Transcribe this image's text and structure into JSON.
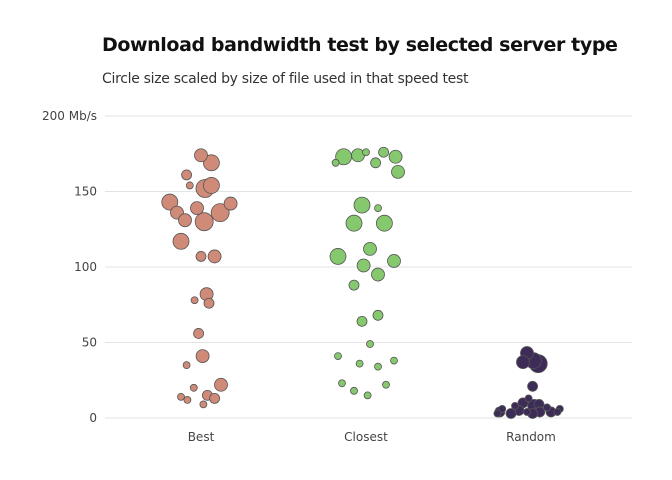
{
  "chart_data": {
    "type": "scatter",
    "title": "Download bandwidth test by selected server type",
    "subtitle": "Circle size scaled by size of file used in that speed test",
    "xlabel": "",
    "ylabel": "",
    "categories": [
      "Best",
      "Closest",
      "Random"
    ],
    "y_ticks": [
      "0",
      "50",
      "100",
      "150",
      "200 Mb/s"
    ],
    "y_tick_values": [
      0,
      50,
      100,
      150,
      200
    ],
    "ylim": [
      0,
      200
    ],
    "grid": "horizontal",
    "legend": "none",
    "colors": {
      "Best": "#d08a78",
      "Closest": "#86c86e",
      "Random": "#3d2c57",
      "outline": "#555555",
      "grid": "#e3e3e3"
    },
    "series": [
      {
        "category": "Best",
        "points": [
          {
            "j": 0.0,
            "y": 174,
            "s": 3
          },
          {
            "j": 0.13,
            "y": 169,
            "s": 4
          },
          {
            "j": -0.18,
            "y": 161,
            "s": 2
          },
          {
            "j": -0.14,
            "y": 154,
            "s": 1
          },
          {
            "j": 0.13,
            "y": 154,
            "s": 4
          },
          {
            "j": 0.05,
            "y": 152,
            "s": 5
          },
          {
            "j": -0.39,
            "y": 143,
            "s": 4
          },
          {
            "j": 0.37,
            "y": 142,
            "s": 3
          },
          {
            "j": -0.05,
            "y": 139,
            "s": 3
          },
          {
            "j": -0.3,
            "y": 136,
            "s": 3
          },
          {
            "j": 0.24,
            "y": 136,
            "s": 5
          },
          {
            "j": -0.2,
            "y": 131,
            "s": 3
          },
          {
            "j": 0.04,
            "y": 130,
            "s": 5
          },
          {
            "j": -0.25,
            "y": 117,
            "s": 4
          },
          {
            "j": 0.0,
            "y": 107,
            "s": 2
          },
          {
            "j": 0.17,
            "y": 107,
            "s": 3
          },
          {
            "j": 0.07,
            "y": 82,
            "s": 3
          },
          {
            "j": -0.08,
            "y": 78,
            "s": 1
          },
          {
            "j": 0.1,
            "y": 76,
            "s": 2
          },
          {
            "j": -0.03,
            "y": 56,
            "s": 2
          },
          {
            "j": 0.02,
            "y": 41,
            "s": 3
          },
          {
            "j": -0.18,
            "y": 35,
            "s": 1
          },
          {
            "j": 0.25,
            "y": 22,
            "s": 3
          },
          {
            "j": -0.09,
            "y": 20,
            "s": 1
          },
          {
            "j": 0.08,
            "y": 15,
            "s": 2
          },
          {
            "j": -0.25,
            "y": 14,
            "s": 1
          },
          {
            "j": 0.17,
            "y": 13,
            "s": 2
          },
          {
            "j": -0.17,
            "y": 12,
            "s": 1
          },
          {
            "j": 0.03,
            "y": 9,
            "s": 1
          }
        ]
      },
      {
        "category": "Closest",
        "points": [
          {
            "j": 0.0,
            "y": 176,
            "s": 1
          },
          {
            "j": 0.22,
            "y": 176,
            "s": 2
          },
          {
            "j": -0.1,
            "y": 174,
            "s": 3
          },
          {
            "j": -0.28,
            "y": 173,
            "s": 4
          },
          {
            "j": 0.37,
            "y": 173,
            "s": 3
          },
          {
            "j": -0.38,
            "y": 169,
            "s": 1
          },
          {
            "j": 0.12,
            "y": 169,
            "s": 2
          },
          {
            "j": 0.4,
            "y": 163,
            "s": 3
          },
          {
            "j": -0.05,
            "y": 141,
            "s": 4
          },
          {
            "j": 0.15,
            "y": 139,
            "s": 1
          },
          {
            "j": -0.15,
            "y": 129,
            "s": 4
          },
          {
            "j": 0.23,
            "y": 129,
            "s": 4
          },
          {
            "j": 0.05,
            "y": 112,
            "s": 3
          },
          {
            "j": -0.35,
            "y": 107,
            "s": 4
          },
          {
            "j": 0.35,
            "y": 104,
            "s": 3
          },
          {
            "j": -0.03,
            "y": 101,
            "s": 3
          },
          {
            "j": 0.15,
            "y": 95,
            "s": 3
          },
          {
            "j": -0.15,
            "y": 88,
            "s": 2
          },
          {
            "j": 0.15,
            "y": 68,
            "s": 2
          },
          {
            "j": -0.05,
            "y": 64,
            "s": 2
          },
          {
            "j": 0.05,
            "y": 49,
            "s": 1
          },
          {
            "j": -0.35,
            "y": 41,
            "s": 1
          },
          {
            "j": 0.35,
            "y": 38,
            "s": 1
          },
          {
            "j": -0.08,
            "y": 36,
            "s": 1
          },
          {
            "j": 0.15,
            "y": 34,
            "s": 1
          },
          {
            "j": -0.3,
            "y": 23,
            "s": 1
          },
          {
            "j": 0.25,
            "y": 22,
            "s": 1
          },
          {
            "j": -0.15,
            "y": 18,
            "s": 1
          },
          {
            "j": 0.02,
            "y": 15,
            "s": 1
          }
        ]
      },
      {
        "category": "Random",
        "points": [
          {
            "j": -0.05,
            "y": 43,
            "s": 3
          },
          {
            "j": -0.1,
            "y": 37,
            "s": 3
          },
          {
            "j": 0.03,
            "y": 38,
            "s": 4
          },
          {
            "j": 0.09,
            "y": 36,
            "s": 5
          },
          {
            "j": 0.02,
            "y": 21,
            "s": 2
          },
          {
            "j": -0.03,
            "y": 13,
            "s": 1
          },
          {
            "j": -0.1,
            "y": 10,
            "s": 2
          },
          {
            "j": 0.1,
            "y": 9,
            "s": 2
          },
          {
            "j": 0.04,
            "y": 8,
            "s": 3
          },
          {
            "j": -0.2,
            "y": 8,
            "s": 1
          },
          {
            "j": 0.2,
            "y": 7,
            "s": 1
          },
          {
            "j": -0.36,
            "y": 6,
            "s": 1
          },
          {
            "j": 0.36,
            "y": 6,
            "s": 1
          },
          {
            "j": -0.15,
            "y": 5,
            "s": 2
          },
          {
            "j": 0.25,
            "y": 4,
            "s": 2
          },
          {
            "j": -0.05,
            "y": 4,
            "s": 1
          },
          {
            "j": 0.11,
            "y": 4,
            "s": 2
          },
          {
            "j": -0.39,
            "y": 4,
            "s": 2
          },
          {
            "j": 0.33,
            "y": 4,
            "s": 1
          },
          {
            "j": -0.25,
            "y": 3,
            "s": 2
          },
          {
            "j": 0.02,
            "y": 3,
            "s": 2
          },
          {
            "j": -0.42,
            "y": 3,
            "s": 1
          }
        ]
      }
    ]
  }
}
